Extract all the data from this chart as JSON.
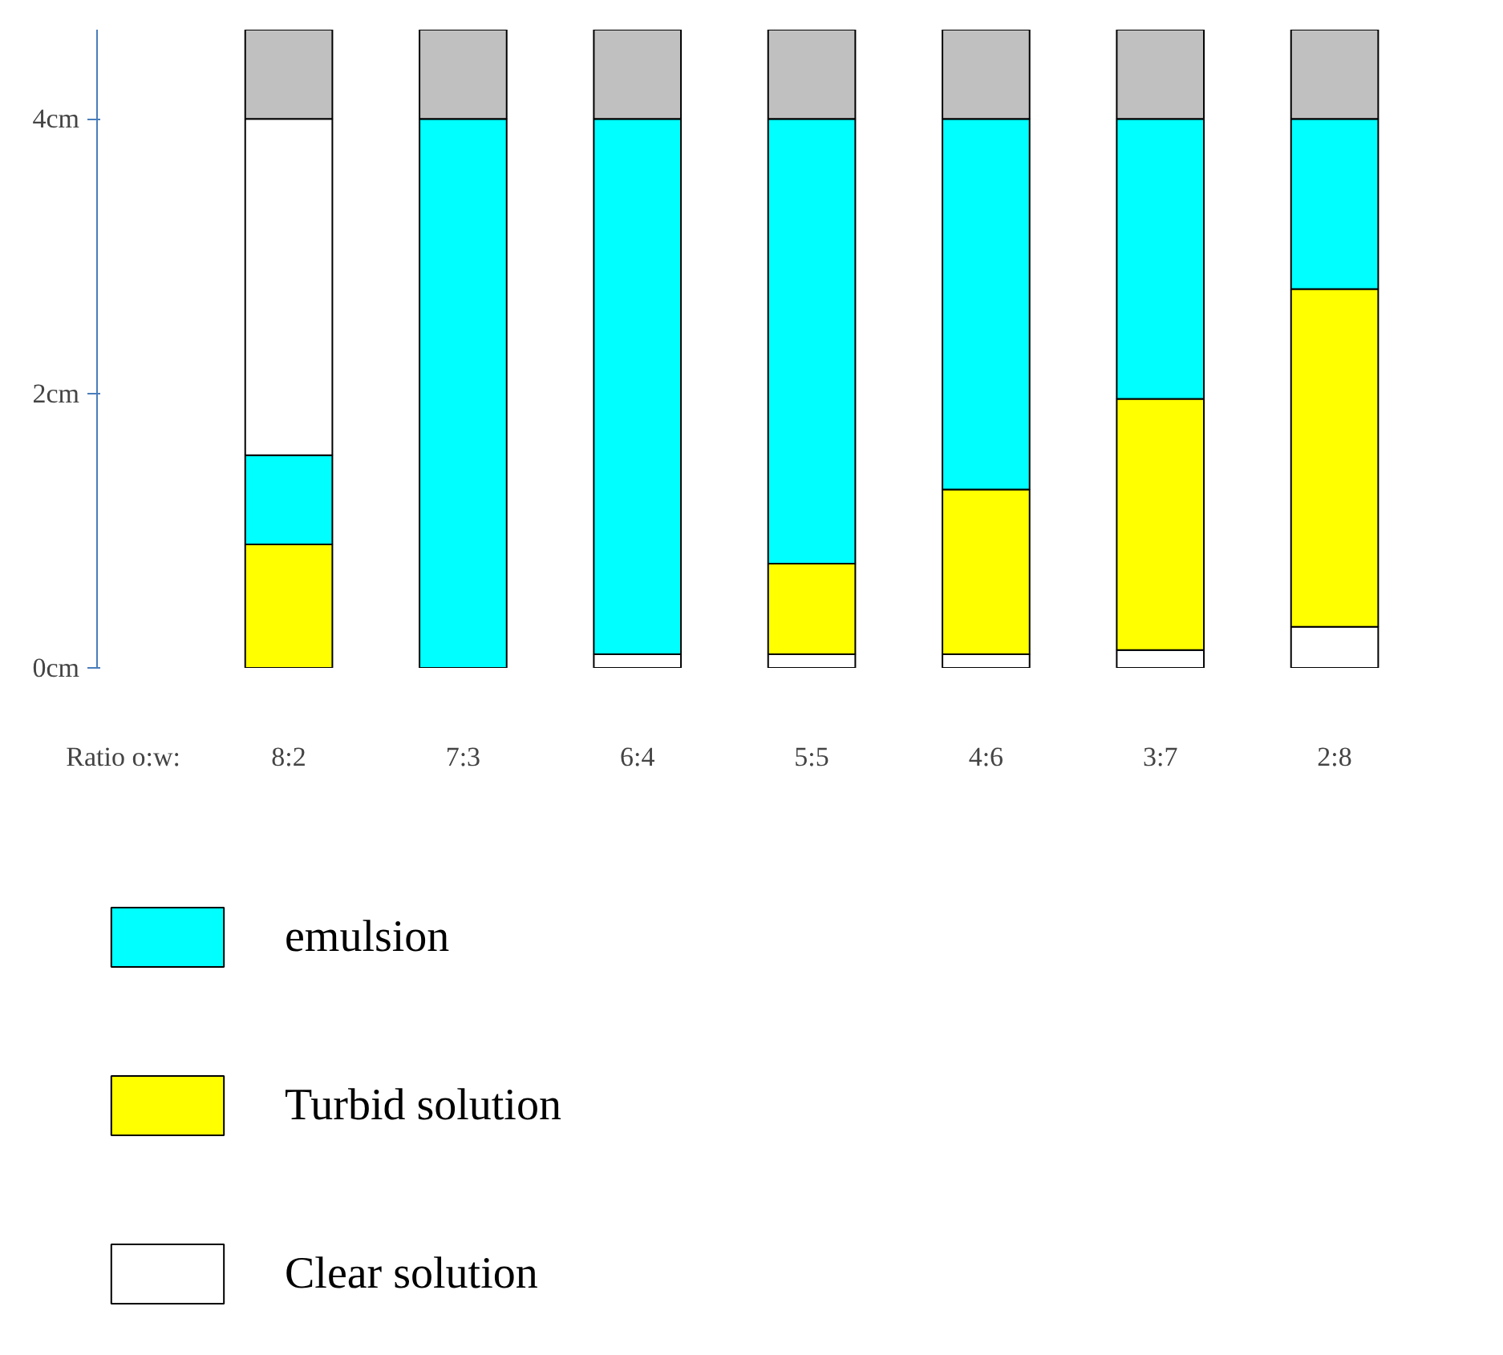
{
  "chart_data": {
    "type": "bar",
    "stacked": true,
    "xlabel": "Ratio o:w:",
    "categories": [
      "8:2",
      "7:3",
      "6:4",
      "5:5",
      "4:6",
      "3:7",
      "2:8"
    ],
    "series": [
      {
        "name": "Clear solution",
        "color": "#ffffff",
        "values": [
          0,
          0,
          0.1,
          0.1,
          0.1,
          0.13,
          0.3
        ]
      },
      {
        "name": "Turbid solution",
        "color": "#ffff00",
        "values": [
          0.9,
          0,
          0,
          0.66,
          1.2,
          1.83,
          2.46
        ]
      },
      {
        "name": "emulsion",
        "color": "#00ffff",
        "values": [
          0.65,
          4,
          3.9,
          3.24,
          2.7,
          2.04,
          1.24
        ]
      },
      {
        "color": "#ffffff",
        "values": [
          2.45,
          0,
          0,
          0,
          0,
          0,
          0
        ]
      },
      {
        "color": "#c0c0c0",
        "values": [
          0.65,
          0.65,
          0.65,
          0.65,
          0.65,
          0.65,
          0.65
        ]
      }
    ],
    "ylim": [
      0,
      4.65
    ],
    "yticks": [
      {
        "value": 0,
        "label": "0cm"
      },
      {
        "value": 2,
        "label": "2cm"
      },
      {
        "value": 4,
        "label": "4cm"
      }
    ],
    "grid": false,
    "legend": "bottom left"
  }
}
